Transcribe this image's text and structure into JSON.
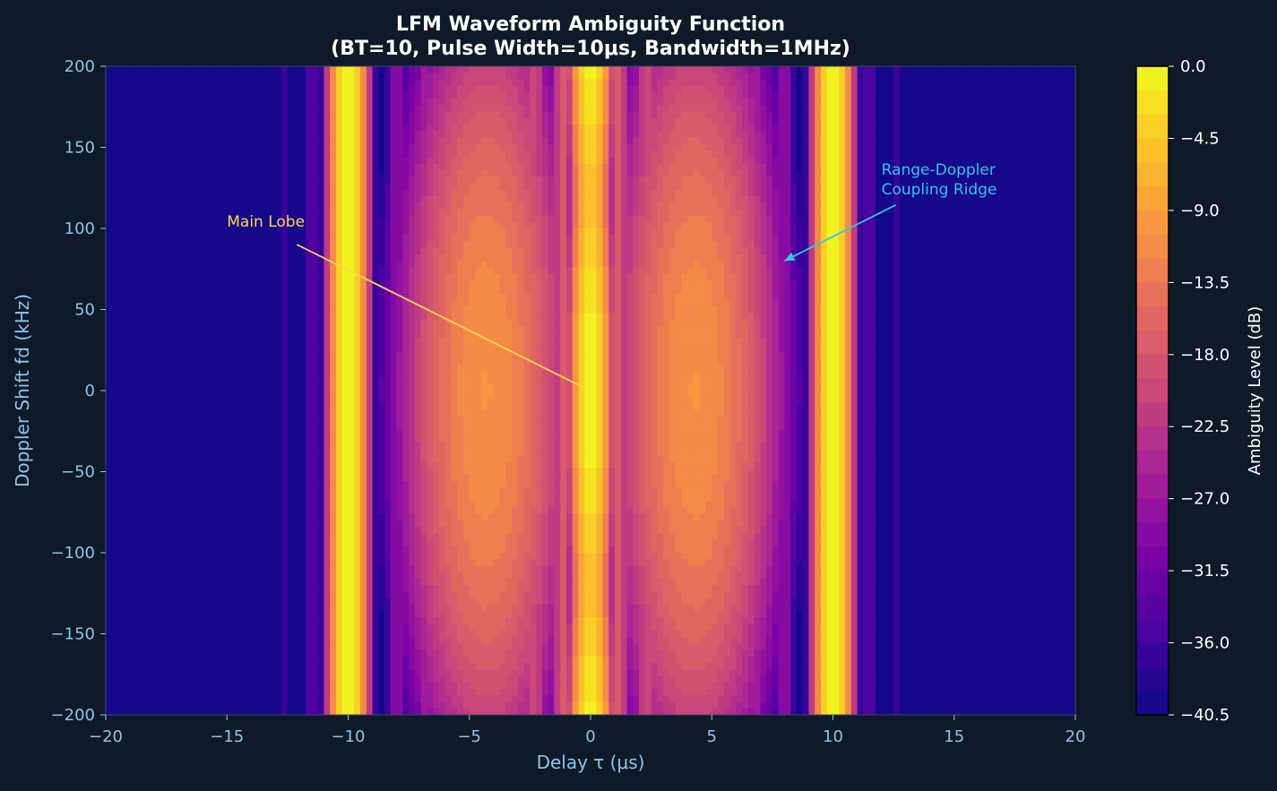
{
  "chart_data": {
    "type": "heatmap",
    "title": "LFM Waveform Ambiguity Function",
    "subtitle": "(BT=10, Pulse Width=10μs, Bandwidth=1MHz)",
    "xlabel": "Delay τ (μs)",
    "ylabel": "Doppler Shift fd (kHz)",
    "xlim": [
      -20,
      20
    ],
    "ylim": [
      -200,
      200
    ],
    "x_ticks": [
      -20,
      -15,
      -10,
      -5,
      0,
      5,
      10,
      15,
      20
    ],
    "x_tick_labels": [
      "−20",
      "−15",
      "−10",
      "−5",
      "0",
      "5",
      "10",
      "15",
      "20"
    ],
    "y_ticks": [
      200,
      150,
      100,
      50,
      0,
      -50,
      -100,
      -150,
      -200
    ],
    "y_tick_labels": [
      "200",
      "150",
      "100",
      "50",
      "0",
      "−50",
      "−100",
      "−150",
      "−200"
    ],
    "grid": false,
    "colormap": "plasma",
    "colorbar": {
      "label": "Ambiguity Level (dB)",
      "min": -40.5,
      "max": 0.0,
      "ticks": [
        0.0,
        -4.5,
        -9.0,
        -13.5,
        -18.0,
        -22.5,
        -27.0,
        -31.5,
        -36.0,
        -40.5
      ],
      "tick_labels": [
        "0.0",
        "−4.5",
        "−9.0",
        "−13.5",
        "−18.0",
        "−22.5",
        "−27.0",
        "−31.5",
        "−36.0",
        "−40.5"
      ],
      "levels": 27
    },
    "ridges": [
      {
        "delay": -10,
        "level_db": 0
      },
      {
        "delay": 10,
        "level_db": 0
      },
      {
        "delay": 0,
        "level_db": 0
      }
    ],
    "annotations": [
      {
        "text": "Main Lobe",
        "text_at": [
          -15,
          100
        ],
        "arrow_to": [
          -0.3,
          2
        ],
        "color": "#ffd84a"
      },
      {
        "text": "Range-Doppler\nCoupling Ridge",
        "text_at": [
          12,
          120
        ],
        "arrow_to": [
          8,
          80
        ],
        "color": "#2ec7e6"
      }
    ]
  },
  "colors": {
    "background": "#0e1a27",
    "axis_text": "#8cc4ee",
    "title_text": "#ffffff",
    "main_lobe_annotation": "#ffd84a",
    "ridge_annotation": "#2ec7e6"
  }
}
